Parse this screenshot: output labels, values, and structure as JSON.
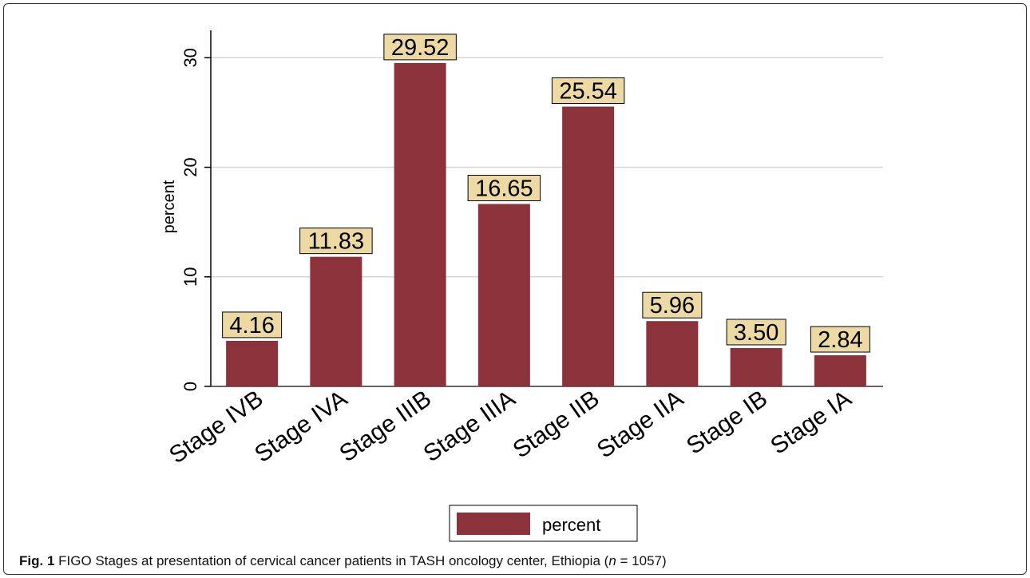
{
  "chart_data": {
    "type": "bar",
    "categories": [
      "Stage IVB",
      "Stage IVA",
      "Stage IIIB",
      "Stage IIIA",
      "Stage IIB",
      "Stage IIA",
      "Stage IB",
      "Stage IA"
    ],
    "series": [
      {
        "name": "percent",
        "values": [
          4.16,
          11.83,
          29.52,
          16.65,
          25.54,
          5.96,
          3.5,
          2.84
        ],
        "labels": [
          "4.16",
          "11.83",
          "29.52",
          "16.65",
          "25.54",
          "5.96",
          "3.50",
          "2.84"
        ]
      }
    ],
    "ylabel": "percent",
    "xlabel": "",
    "ylim": [
      0,
      32.5
    ],
    "yticks": [
      0,
      10,
      20,
      30
    ],
    "grid": true,
    "legend_position": "bottom-center",
    "bar_color": "#8B323B",
    "label_box_color": "#EDD9A3"
  },
  "legend": {
    "label": "percent"
  },
  "caption": {
    "fig_number": "Fig. 1",
    "text_main": " FIGO Stages at presentation of cervical cancer patients in TASH oncology center, Ethiopia (",
    "n_symbol": "n",
    "text_end": " = 1057)"
  }
}
